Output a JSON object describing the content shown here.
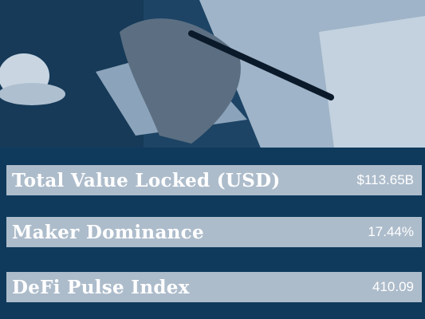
{
  "rows": [
    {
      "label": "Total Value Locked (USD)",
      "value": "$113.65B"
    },
    {
      "label": "Maker Dominance",
      "value": "17.44%"
    },
    {
      "label": "DeFi Pulse Index",
      "value": "410.09"
    }
  ]
}
